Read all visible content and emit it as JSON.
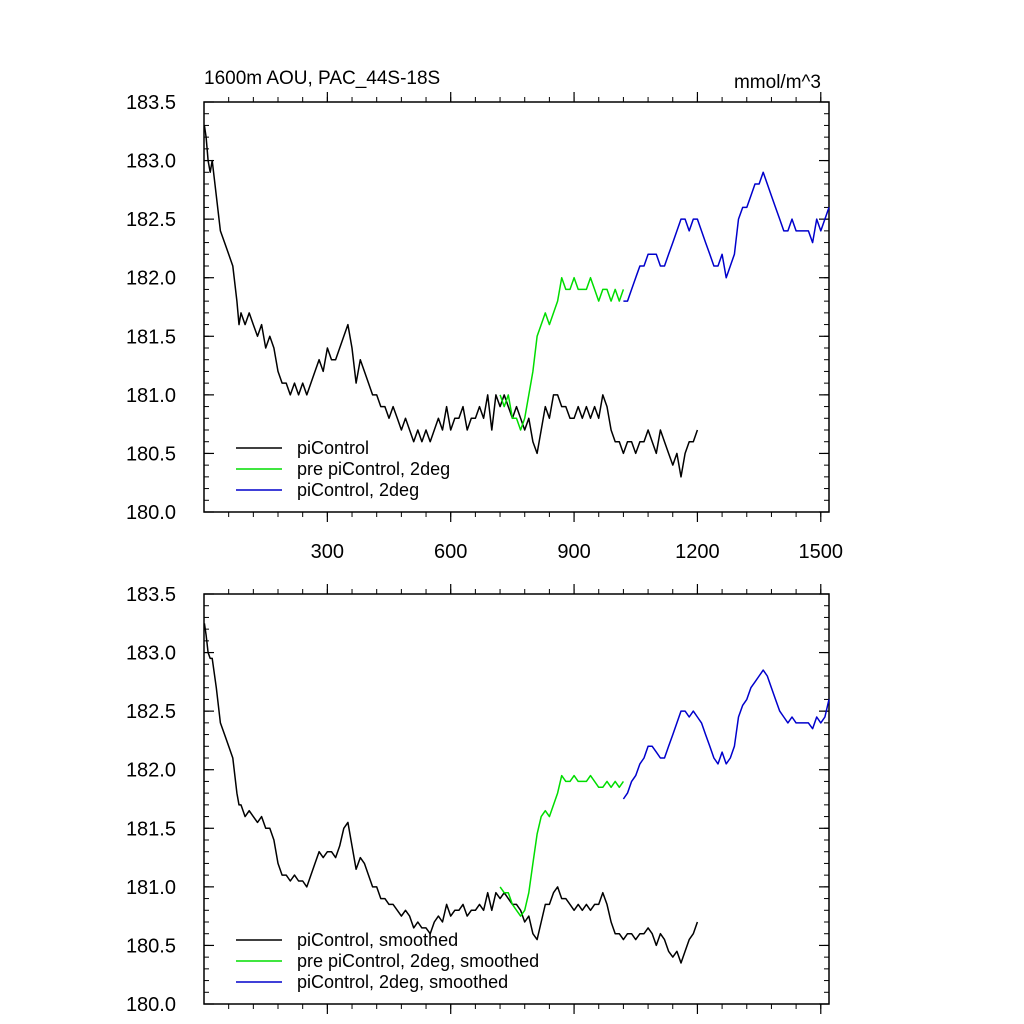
{
  "chart_data": [
    {
      "type": "line",
      "title": "1600m AOU, PAC_44S-18S",
      "units": "mmol/m^3",
      "xlim": [
        0,
        1520
      ],
      "ylim": [
        180.0,
        183.5
      ],
      "xticks": [
        300,
        600,
        900,
        1200,
        1500
      ],
      "xtick_labels": [
        "300",
        "600",
        "900",
        "1200",
        "1500"
      ],
      "yticks": [
        180.0,
        180.5,
        181.0,
        181.5,
        182.0,
        182.5,
        183.0,
        183.5
      ],
      "ytick_labels": [
        "180.0",
        "180.5",
        "181.0",
        "181.5",
        "182.0",
        "182.5",
        "183.0",
        "183.5"
      ],
      "legend_position": "bottom-left",
      "grid": false,
      "series": [
        {
          "name": "piControl",
          "color": "#000000",
          "x": [
            1,
            5,
            10,
            15,
            20,
            30,
            40,
            50,
            60,
            70,
            80,
            85,
            90,
            100,
            110,
            120,
            130,
            140,
            150,
            160,
            170,
            180,
            190,
            200,
            210,
            220,
            230,
            240,
            250,
            260,
            270,
            280,
            290,
            300,
            310,
            320,
            330,
            340,
            350,
            360,
            370,
            380,
            390,
            400,
            410,
            420,
            430,
            440,
            450,
            460,
            470,
            480,
            490,
            500,
            510,
            520,
            530,
            540,
            550,
            560,
            570,
            580,
            590,
            600,
            610,
            620,
            630,
            640,
            650,
            660,
            670,
            680,
            690,
            700,
            710,
            720,
            730,
            740,
            750,
            760,
            770,
            780,
            790,
            800,
            810,
            820,
            830,
            840,
            850,
            860,
            870,
            880,
            890,
            900,
            910,
            920,
            930,
            940,
            950,
            960,
            970,
            980,
            990,
            1000,
            1010,
            1020,
            1030,
            1040,
            1050,
            1060,
            1070,
            1080,
            1090,
            1100,
            1110,
            1120,
            1130,
            1140,
            1150,
            1160,
            1170,
            1180,
            1190,
            1200
          ],
          "y": [
            183.3,
            183.2,
            183.0,
            182.9,
            183.0,
            182.7,
            182.4,
            182.3,
            182.2,
            182.1,
            181.8,
            181.6,
            181.7,
            181.6,
            181.7,
            181.6,
            181.5,
            181.6,
            181.4,
            181.5,
            181.4,
            181.2,
            181.1,
            181.1,
            181.0,
            181.1,
            181.0,
            181.1,
            181.0,
            181.1,
            181.2,
            181.3,
            181.2,
            181.4,
            181.3,
            181.3,
            181.4,
            181.5,
            181.6,
            181.4,
            181.1,
            181.3,
            181.2,
            181.1,
            181.0,
            181.0,
            180.9,
            180.9,
            180.8,
            180.9,
            180.8,
            180.7,
            180.8,
            180.7,
            180.6,
            180.7,
            180.6,
            180.7,
            180.6,
            180.7,
            180.8,
            180.7,
            180.9,
            180.7,
            180.8,
            180.8,
            180.9,
            180.7,
            180.8,
            180.8,
            180.9,
            180.8,
            181.0,
            180.7,
            181.0,
            180.9,
            181.0,
            180.9,
            180.8,
            180.9,
            180.8,
            180.7,
            180.8,
            180.6,
            180.5,
            180.7,
            180.9,
            180.8,
            181.0,
            181.0,
            180.9,
            180.9,
            180.8,
            180.8,
            180.9,
            180.8,
            180.9,
            180.8,
            180.9,
            180.8,
            181.0,
            180.9,
            180.7,
            180.6,
            180.6,
            180.5,
            180.6,
            180.6,
            180.5,
            180.6,
            180.6,
            180.7,
            180.6,
            180.5,
            180.7,
            180.6,
            180.5,
            180.4,
            180.5,
            180.3,
            180.5,
            180.6,
            180.6,
            180.7
          ]
        },
        {
          "name": "pre piControl, 2deg",
          "color": "#00dd00",
          "x": [
            720,
            730,
            740,
            750,
            760,
            770,
            780,
            790,
            800,
            810,
            820,
            830,
            840,
            850,
            860,
            870,
            880,
            890,
            900,
            910,
            920,
            930,
            940,
            950,
            960,
            970,
            980,
            990,
            1000,
            1010,
            1020
          ],
          "y": [
            181.0,
            180.9,
            181.0,
            180.8,
            180.8,
            180.7,
            180.8,
            181.0,
            181.2,
            181.5,
            181.6,
            181.7,
            181.6,
            181.7,
            181.8,
            182.0,
            181.9,
            181.9,
            182.0,
            181.9,
            181.9,
            181.9,
            182.0,
            181.9,
            181.8,
            181.9,
            181.9,
            181.8,
            181.9,
            181.8,
            181.9
          ]
        },
        {
          "name": "piControl, 2deg",
          "color": "#0000cc",
          "x": [
            1020,
            1030,
            1040,
            1050,
            1060,
            1070,
            1080,
            1090,
            1100,
            1110,
            1120,
            1130,
            1140,
            1150,
            1160,
            1170,
            1180,
            1190,
            1200,
            1210,
            1220,
            1230,
            1240,
            1250,
            1260,
            1270,
            1280,
            1290,
            1300,
            1310,
            1320,
            1330,
            1340,
            1350,
            1360,
            1370,
            1380,
            1390,
            1400,
            1410,
            1420,
            1430,
            1440,
            1450,
            1460,
            1470,
            1480,
            1490,
            1500,
            1510,
            1520
          ],
          "y": [
            181.8,
            181.8,
            181.9,
            182.0,
            182.1,
            182.1,
            182.2,
            182.2,
            182.2,
            182.1,
            182.1,
            182.2,
            182.3,
            182.4,
            182.5,
            182.5,
            182.4,
            182.5,
            182.5,
            182.4,
            182.3,
            182.2,
            182.1,
            182.1,
            182.2,
            182.0,
            182.1,
            182.2,
            182.5,
            182.6,
            182.6,
            182.7,
            182.8,
            182.8,
            182.9,
            182.8,
            182.7,
            182.6,
            182.5,
            182.4,
            182.4,
            182.5,
            182.4,
            182.4,
            182.4,
            182.4,
            182.3,
            182.5,
            182.4,
            182.5,
            182.6
          ]
        }
      ]
    },
    {
      "type": "line",
      "xlim": [
        0,
        1520
      ],
      "ylim": [
        180.0,
        183.5
      ],
      "xticks": [
        300,
        600,
        900,
        1200,
        1500
      ],
      "yticks": [
        180.0,
        180.5,
        181.0,
        181.5,
        182.0,
        182.5,
        183.0,
        183.5
      ],
      "ytick_labels": [
        "180.0",
        "180.5",
        "181.0",
        "181.5",
        "182.0",
        "182.5",
        "183.0",
        "183.5"
      ],
      "legend_position": "bottom-left",
      "grid": false,
      "series": [
        {
          "name": "piControl, smoothed",
          "color": "#000000",
          "x": [
            1,
            5,
            10,
            15,
            20,
            30,
            40,
            50,
            60,
            70,
            80,
            85,
            90,
            100,
            110,
            120,
            130,
            140,
            150,
            160,
            170,
            180,
            190,
            200,
            210,
            220,
            230,
            240,
            250,
            260,
            270,
            280,
            290,
            300,
            310,
            320,
            330,
            340,
            350,
            360,
            370,
            380,
            390,
            400,
            410,
            420,
            430,
            440,
            450,
            460,
            470,
            480,
            490,
            500,
            510,
            520,
            530,
            540,
            550,
            560,
            570,
            580,
            590,
            600,
            610,
            620,
            630,
            640,
            650,
            660,
            670,
            680,
            690,
            700,
            710,
            720,
            730,
            740,
            750,
            760,
            770,
            780,
            790,
            800,
            810,
            820,
            830,
            840,
            850,
            860,
            870,
            880,
            890,
            900,
            910,
            920,
            930,
            940,
            950,
            960,
            970,
            980,
            990,
            1000,
            1010,
            1020,
            1030,
            1040,
            1050,
            1060,
            1070,
            1080,
            1090,
            1100,
            1110,
            1120,
            1130,
            1140,
            1150,
            1160,
            1170,
            1180,
            1190,
            1200
          ],
          "y": [
            183.25,
            183.15,
            183.0,
            182.95,
            182.95,
            182.7,
            182.4,
            182.3,
            182.2,
            182.1,
            181.8,
            181.7,
            181.7,
            181.6,
            181.65,
            181.6,
            181.55,
            181.6,
            181.5,
            181.5,
            181.4,
            181.2,
            181.1,
            181.1,
            181.05,
            181.1,
            181.05,
            181.05,
            181.0,
            181.1,
            181.2,
            181.3,
            181.25,
            181.3,
            181.3,
            181.25,
            181.35,
            181.5,
            181.55,
            181.35,
            181.15,
            181.25,
            181.2,
            181.1,
            181.0,
            181.0,
            180.9,
            180.9,
            180.85,
            180.85,
            180.8,
            180.75,
            180.8,
            180.75,
            180.65,
            180.7,
            180.65,
            180.65,
            180.6,
            180.7,
            180.75,
            180.7,
            180.85,
            180.75,
            180.8,
            180.8,
            180.85,
            180.75,
            180.8,
            180.8,
            180.85,
            180.8,
            180.95,
            180.8,
            180.95,
            180.9,
            180.95,
            180.9,
            180.85,
            180.85,
            180.8,
            180.7,
            180.75,
            180.6,
            180.55,
            180.7,
            180.85,
            180.85,
            180.95,
            181.0,
            180.9,
            180.9,
            180.85,
            180.8,
            180.85,
            180.8,
            180.85,
            180.8,
            180.85,
            180.85,
            180.95,
            180.85,
            180.7,
            180.6,
            180.6,
            180.55,
            180.6,
            180.6,
            180.55,
            180.6,
            180.6,
            180.65,
            180.6,
            180.5,
            180.6,
            180.55,
            180.45,
            180.4,
            180.45,
            180.35,
            180.45,
            180.55,
            180.6,
            180.7
          ]
        },
        {
          "name": "pre piControl, 2deg, smoothed",
          "color": "#00dd00",
          "x": [
            720,
            730,
            740,
            750,
            760,
            770,
            780,
            790,
            800,
            810,
            820,
            830,
            840,
            850,
            860,
            870,
            880,
            890,
            900,
            910,
            920,
            930,
            940,
            950,
            960,
            970,
            980,
            990,
            1000,
            1010,
            1020
          ],
          "y": [
            181.0,
            180.95,
            180.95,
            180.85,
            180.8,
            180.75,
            180.8,
            180.95,
            181.2,
            181.45,
            181.6,
            181.65,
            181.6,
            181.7,
            181.8,
            181.95,
            181.9,
            181.9,
            181.95,
            181.9,
            181.9,
            181.9,
            181.95,
            181.9,
            181.85,
            181.85,
            181.9,
            181.85,
            181.9,
            181.85,
            181.9
          ]
        },
        {
          "name": "piControl, 2deg, smoothed",
          "color": "#0000cc",
          "x": [
            1020,
            1030,
            1040,
            1050,
            1060,
            1070,
            1080,
            1090,
            1100,
            1110,
            1120,
            1130,
            1140,
            1150,
            1160,
            1170,
            1180,
            1190,
            1200,
            1210,
            1220,
            1230,
            1240,
            1250,
            1260,
            1270,
            1280,
            1290,
            1300,
            1310,
            1320,
            1330,
            1340,
            1350,
            1360,
            1370,
            1380,
            1390,
            1400,
            1410,
            1420,
            1430,
            1440,
            1450,
            1460,
            1470,
            1480,
            1490,
            1500,
            1510,
            1520
          ],
          "y": [
            181.75,
            181.8,
            181.9,
            181.95,
            182.05,
            182.1,
            182.2,
            182.2,
            182.15,
            182.1,
            182.1,
            182.2,
            182.3,
            182.4,
            182.5,
            182.5,
            182.45,
            182.5,
            182.45,
            182.4,
            182.3,
            182.2,
            182.1,
            182.05,
            182.15,
            182.05,
            182.1,
            182.2,
            182.45,
            182.55,
            182.6,
            182.7,
            182.75,
            182.8,
            182.85,
            182.8,
            182.7,
            182.6,
            182.5,
            182.45,
            182.4,
            182.45,
            182.4,
            182.4,
            182.4,
            182.4,
            182.35,
            182.45,
            182.4,
            182.45,
            182.6
          ]
        }
      ]
    }
  ]
}
